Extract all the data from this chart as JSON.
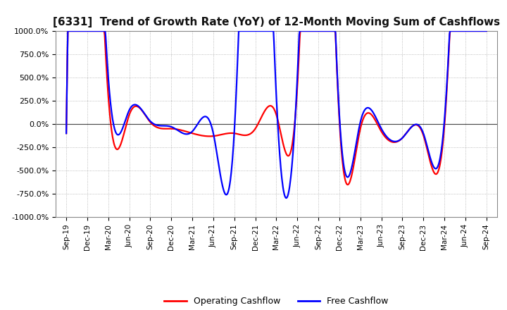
{
  "title": "[6331]  Trend of Growth Rate (YoY) of 12-Month Moving Sum of Cashflows",
  "ylim": [
    -1000,
    1000
  ],
  "yticks": [
    -1000,
    -750,
    -500,
    -250,
    0,
    250,
    500,
    750,
    1000
  ],
  "ytick_labels": [
    "-1000.0%",
    "-750.0%",
    "-500.0%",
    "-250.0%",
    "0.0%",
    "250.0%",
    "500.0%",
    "750.0%",
    "1000.0%"
  ],
  "x_labels": [
    "Sep-19",
    "Dec-19",
    "Mar-20",
    "Jun-20",
    "Sep-20",
    "Dec-20",
    "Mar-21",
    "Jun-21",
    "Sep-21",
    "Dec-21",
    "Mar-22",
    "Jun-22",
    "Sep-22",
    "Dec-22",
    "Mar-23",
    "Jun-23",
    "Sep-23",
    "Dec-23",
    "Mar-24",
    "Jun-24",
    "Sep-24"
  ],
  "operating_cashflow": [
    -100,
    5000,
    300,
    100,
    20,
    -50,
    -100,
    -130,
    -100,
    -50,
    100,
    400,
    5000,
    50,
    -50,
    -80,
    -150,
    -120,
    -30,
    5000,
    4000
  ],
  "free_cashflow": [
    -100,
    5000,
    500,
    150,
    30,
    -30,
    -80,
    -100,
    -80,
    5000,
    300,
    500,
    5000,
    100,
    20,
    -50,
    -150,
    -100,
    30,
    5000,
    4500
  ],
  "operating_color": "#ff0000",
  "free_color": "#0000ff",
  "background_color": "#ffffff",
  "grid_color": "#aaaaaa",
  "grid_style": "dotted",
  "title_fontsize": 11,
  "legend_labels": [
    "Operating Cashflow",
    "Free Cashflow"
  ]
}
